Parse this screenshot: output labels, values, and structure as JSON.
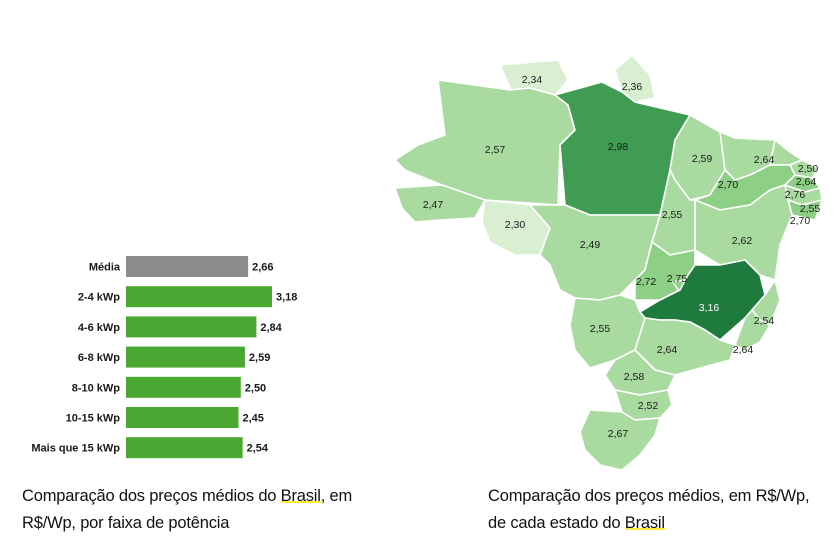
{
  "chart_data": [
    {
      "type": "bar",
      "orientation": "horizontal",
      "title": "",
      "categories": [
        "Média",
        "2-4 kWp",
        "4-6 kWp",
        "6-8 kWp",
        "8-10 kWp",
        "10-15 kWp",
        "Mais que 15 kWp"
      ],
      "values": [
        2.66,
        3.18,
        2.84,
        2.59,
        2.5,
        2.45,
        2.54
      ],
      "value_labels": [
        "2,66",
        "3,18",
        "2,84",
        "2,59",
        "2,50",
        "2,45",
        "2,54"
      ],
      "colors": [
        "#8c8c8c",
        "#4aa832",
        "#4aa832",
        "#4aa832",
        "#4aa832",
        "#4aa832",
        "#4aa832"
      ],
      "xlim": [
        0,
        3.18
      ],
      "grid": false,
      "caption_parts": [
        "Comparação dos preços médios do ",
        "Brasil",
        ", em R$/Wp, por faixa de potência"
      ]
    },
    {
      "type": "choropleth",
      "title": "",
      "regions": [
        {
          "value": 2.34,
          "label": "2,34"
        },
        {
          "value": 2.36,
          "label": "2,36"
        },
        {
          "value": 2.57,
          "label": "2,57"
        },
        {
          "value": 2.98,
          "label": "2,98"
        },
        {
          "value": 2.59,
          "label": "2,59"
        },
        {
          "value": 2.64,
          "label": "2,64"
        },
        {
          "value": 2.5,
          "label": "2,50"
        },
        {
          "value": 2.64,
          "label": "2,64"
        },
        {
          "value": 2.7,
          "label": "2,70"
        },
        {
          "value": 2.76,
          "label": "2,76"
        },
        {
          "value": 2.55,
          "label": "2,55"
        },
        {
          "value": 2.7,
          "label": "2,70"
        },
        {
          "value": 2.47,
          "label": "2,47"
        },
        {
          "value": 2.3,
          "label": "2,30"
        },
        {
          "value": 2.55,
          "label": "2,55"
        },
        {
          "value": 2.49,
          "label": "2,49"
        },
        {
          "value": 2.62,
          "label": "2,62"
        },
        {
          "value": 2.72,
          "label": "2,72"
        },
        {
          "value": 2.75,
          "label": "2,75"
        },
        {
          "value": 3.16,
          "label": "3,16"
        },
        {
          "value": 2.55,
          "label": "2,55"
        },
        {
          "value": 2.54,
          "label": "2,54"
        },
        {
          "value": 2.64,
          "label": "2,64"
        },
        {
          "value": 2.64,
          "label": "2,64"
        },
        {
          "value": 2.58,
          "label": "2,58"
        },
        {
          "value": 2.52,
          "label": "2,52"
        },
        {
          "value": 2.67,
          "label": "2,67"
        }
      ],
      "color_scale": [
        "#d8efd2",
        "#a9daa0",
        "#8dcf84",
        "#3f9c52",
        "#1f7a3e"
      ],
      "caption_parts": [
        "Comparação dos preços médios, em R$/Wp, de cada estado do ",
        "Brasil"
      ]
    }
  ]
}
